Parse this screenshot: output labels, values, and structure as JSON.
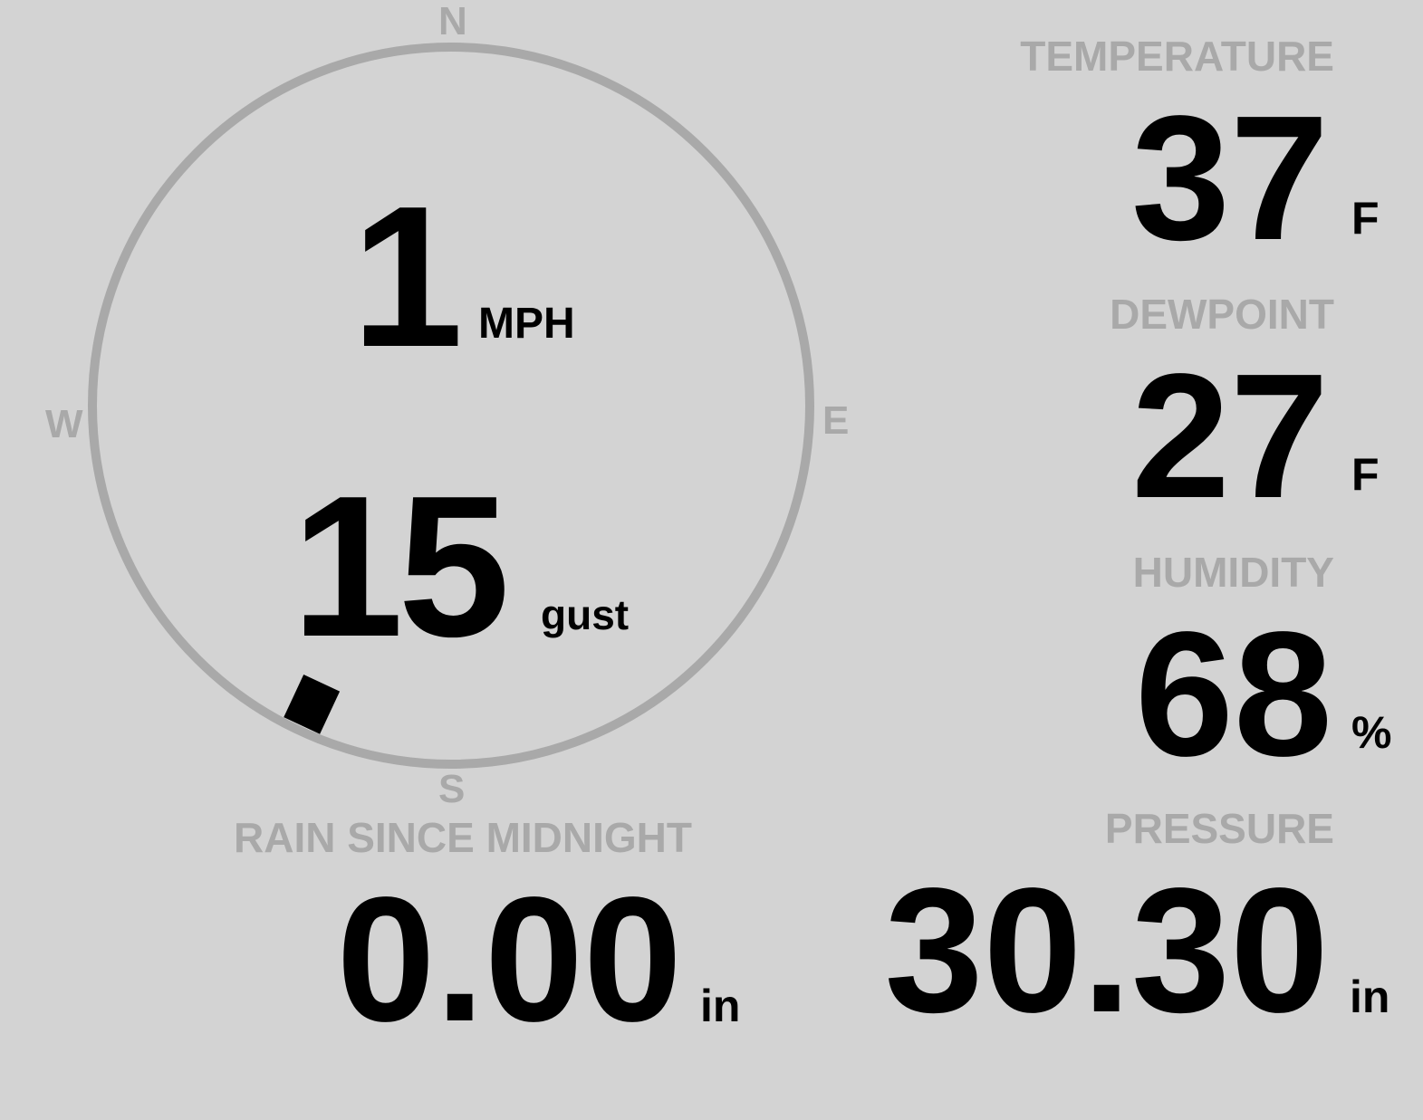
{
  "wind": {
    "speed": "1",
    "speed_unit": "MPH",
    "gust": "15",
    "gust_unit": "gust",
    "direction_degrees": 205,
    "compass": {
      "n": "N",
      "e": "E",
      "s": "S",
      "w": "W"
    }
  },
  "temperature": {
    "label": "TEMPERATURE",
    "value": "37",
    "unit": "F"
  },
  "dewpoint": {
    "label": "DEWPOINT",
    "value": "27",
    "unit": "F"
  },
  "humidity": {
    "label": "HUMIDITY",
    "value": "68",
    "unit": "%"
  },
  "rain": {
    "label": "RAIN SINCE MIDNIGHT",
    "value": "0.00",
    "unit": "in"
  },
  "pressure": {
    "label": "PRESSURE",
    "value": "30.30",
    "unit": "in"
  },
  "colors": {
    "background": "#d3d3d3",
    "muted": "#a9a9a9",
    "text": "#000000"
  }
}
